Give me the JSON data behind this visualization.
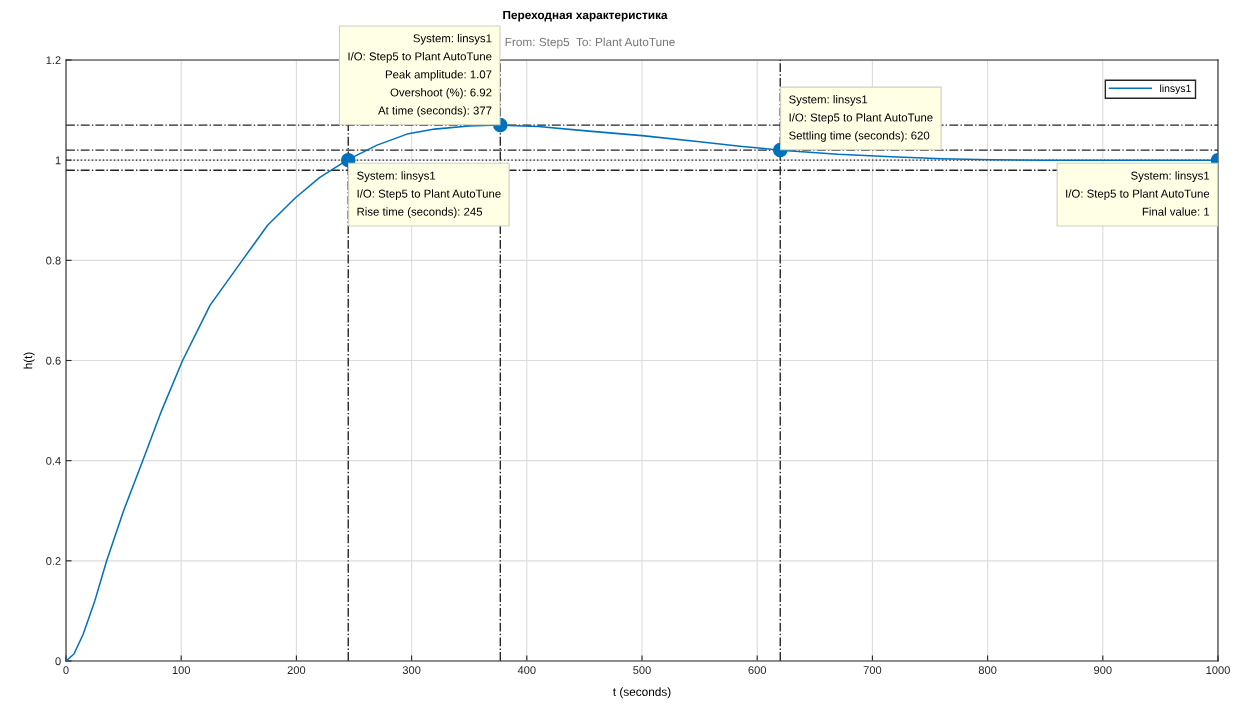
{
  "chart_data": {
    "type": "line",
    "title": "Переходная характеристика",
    "subtitle": "From: Step5  To: Plant AutoTune",
    "xlabel": "t (seconds)",
    "ylabel": "h(t)",
    "series": [
      {
        "name": "linsys1",
        "color": "#0072bd",
        "x": [
          0,
          6.9,
          14.8,
          25,
          35.3,
          50,
          66.6,
          83,
          101.2,
          125,
          153,
          175,
          198.7,
          220,
          244,
          270,
          296,
          320,
          350,
          377,
          410,
          454,
          500,
          550,
          585,
          620,
          670,
          716.7,
          760,
          804,
          850,
          900,
          1000
        ],
        "values": [
          0,
          0.014,
          0.053,
          0.12,
          0.2,
          0.3,
          0.4,
          0.5,
          0.6,
          0.71,
          0.8,
          0.87,
          0.924,
          0.965,
          1.0,
          1.03,
          1.052,
          1.062,
          1.068,
          1.07,
          1.067,
          1.058,
          1.049,
          1.037,
          1.028,
          1.02,
          1.012,
          1.007,
          1.003,
          1.001,
          1.0,
          1.0,
          1.0
        ]
      },
      {
        "type": "scatter",
        "color": "#0072bd",
        "marker": "circle",
        "x": [
          245,
          377,
          620,
          1000
        ],
        "values": [
          1,
          1.07,
          1.02,
          1
        ]
      }
    ],
    "annotations": [
      {
        "text": "System: linsys1\nI/O: Step5 to Plant AutoTune\nRise time (seconds): 245",
        "x": 245,
        "y": 1
      },
      {
        "text": "System: linsys1\nI/O: Step5 to Plant AutoTune\nPeak amplitude: 1.07\nOvershoot (%): 6.92\nAt time (seconds): 377",
        "x": 377,
        "y": 1.07
      },
      {
        "text": "System: linsys1\nI/O: Step5 to Plant AutoTune\nSettling time (seconds): 620",
        "x": 620,
        "y": 1.02
      },
      {
        "text": "System: linsys1\nI/O: Step5 to Plant AutoTune\nFinal value: 1",
        "x": 1000,
        "y": 1
      }
    ],
    "ref_lines": [
      {
        "axis": "y",
        "value": 1.07,
        "color": "#262626",
        "line_style": "dashdot"
      },
      {
        "axis": "y",
        "value": 1.02,
        "color": "#262626",
        "line_style": "dashdot"
      },
      {
        "axis": "y",
        "value": 0.98,
        "color": "#262626",
        "line_style": "dashdot"
      },
      {
        "axis": "y",
        "value": 1,
        "color": "#262626",
        "line_style": "dotted"
      },
      {
        "axis": "x",
        "value": 245,
        "color": "#262626",
        "line_style": "dashdot"
      },
      {
        "axis": "x",
        "value": 377,
        "color": "#262626",
        "line_style": "dashdot"
      },
      {
        "axis": "x",
        "value": 620,
        "color": "#262626",
        "line_style": "dashdot"
      }
    ],
    "xlim": [
      0,
      1000
    ],
    "ylim": [
      0,
      1.2
    ],
    "xticks": [
      0,
      100,
      200,
      300,
      400,
      500,
      600,
      700,
      800,
      900,
      1000
    ],
    "yticks": [
      0,
      0.2,
      0.4,
      0.6,
      0.8,
      1,
      1.2
    ],
    "grid": true,
    "legend": "top right",
    "marker": "none",
    "line_style": "solid"
  }
}
